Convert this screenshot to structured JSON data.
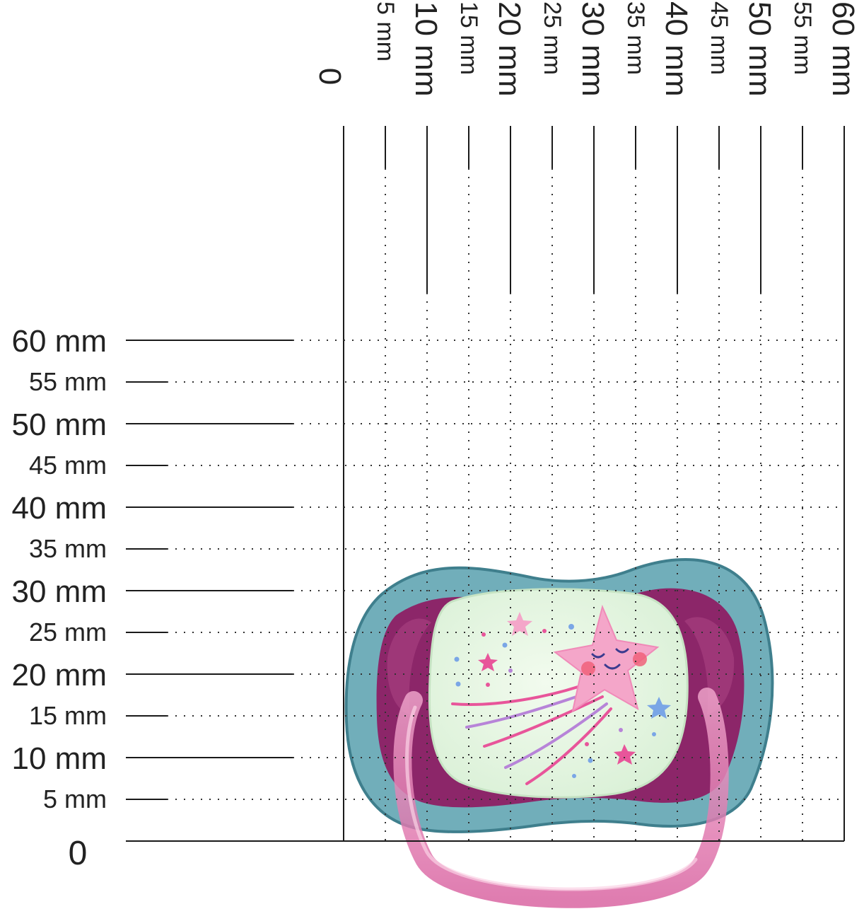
{
  "ruler": {
    "unit": "mm",
    "zero_label": "0",
    "major_labels": [
      "10 mm",
      "20 mm",
      "30 mm",
      "40 mm",
      "50 mm",
      "60 mm"
    ],
    "minor_labels": [
      "5 mm",
      "15 mm",
      "25 mm",
      "35 mm",
      "45 mm",
      "55 mm"
    ],
    "x_ticks": [
      {
        "value": 5,
        "label": "5 mm",
        "major": false
      },
      {
        "value": 10,
        "label": "10 mm",
        "major": true
      },
      {
        "value": 15,
        "label": "15 mm",
        "major": false
      },
      {
        "value": 20,
        "label": "20 mm",
        "major": true
      },
      {
        "value": 25,
        "label": "25 mm",
        "major": false
      },
      {
        "value": 30,
        "label": "30 mm",
        "major": true
      },
      {
        "value": 35,
        "label": "35 mm",
        "major": false
      },
      {
        "value": 40,
        "label": "40 mm",
        "major": true
      },
      {
        "value": 45,
        "label": "45 mm",
        "major": false
      },
      {
        "value": 50,
        "label": "50 mm",
        "major": true
      },
      {
        "value": 55,
        "label": "55 mm",
        "major": false
      },
      {
        "value": 60,
        "label": "60 mm",
        "major": true
      }
    ],
    "y_ticks": [
      {
        "value": 5,
        "label": "5 mm",
        "major": false
      },
      {
        "value": 10,
        "label": "10 mm",
        "major": true
      },
      {
        "value": 15,
        "label": "15 mm",
        "major": false
      },
      {
        "value": 20,
        "label": "20 mm",
        "major": true
      },
      {
        "value": 25,
        "label": "25 mm",
        "major": false
      },
      {
        "value": 30,
        "label": "30 mm",
        "major": true
      },
      {
        "value": 35,
        "label": "35 mm",
        "major": false
      },
      {
        "value": 40,
        "label": "40 mm",
        "major": true
      },
      {
        "value": 45,
        "label": "45 mm",
        "major": false
      },
      {
        "value": 50,
        "label": "50 mm",
        "major": true
      },
      {
        "value": 55,
        "label": "55 mm",
        "major": false
      },
      {
        "value": 60,
        "label": "60 mm",
        "major": true
      }
    ]
  },
  "product": {
    "name_icon": "pacifier-icon",
    "width_mm": 52,
    "height_mm": 33,
    "colors": {
      "shield_outer": "#4f96a6",
      "shield_inner": "#8e1a62",
      "nipple_glow": "#e6f7e1",
      "handle": "#e07ab0",
      "star": "#f4a6c9",
      "star_blush": "#f0607a",
      "trail_pink": "#e8559a",
      "trail_purple": "#b784d8",
      "accent_blue": "#7aa6e6"
    },
    "decoration_icons": [
      "shooting-star-icon",
      "small-star-icon",
      "dot-icon"
    ]
  }
}
